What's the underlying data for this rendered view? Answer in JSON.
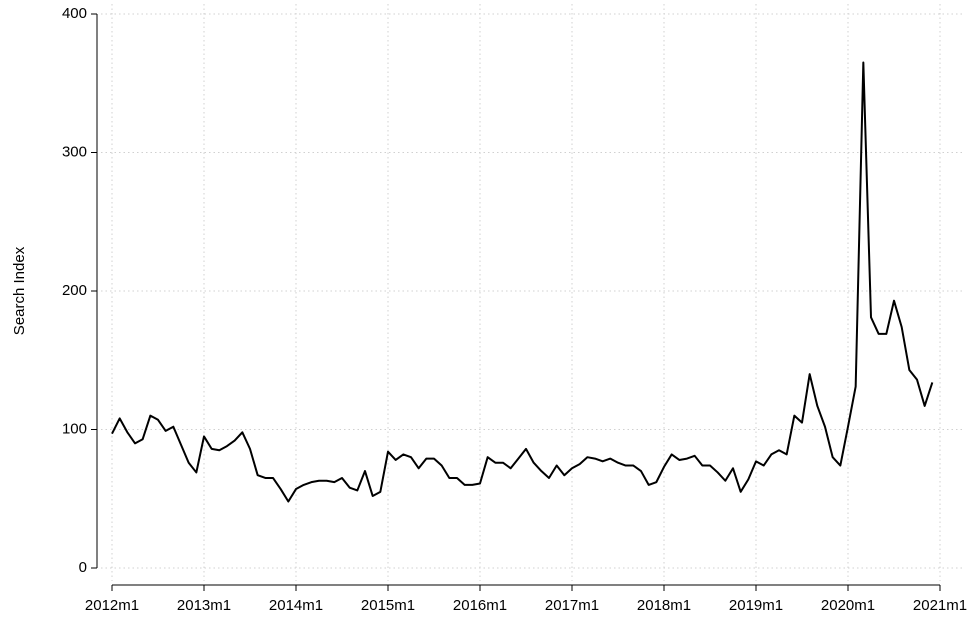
{
  "chart_data": {
    "type": "line",
    "y_label": "Search Index",
    "x": [
      "2012m1",
      "2012m2",
      "2012m3",
      "2012m4",
      "2012m5",
      "2012m6",
      "2012m7",
      "2012m8",
      "2012m9",
      "2012m10",
      "2012m11",
      "2012m12",
      "2013m1",
      "2013m2",
      "2013m3",
      "2013m4",
      "2013m5",
      "2013m6",
      "2013m7",
      "2013m8",
      "2013m9",
      "2013m10",
      "2013m11",
      "2013m12",
      "2014m1",
      "2014m2",
      "2014m3",
      "2014m4",
      "2014m5",
      "2014m6",
      "2014m7",
      "2014m8",
      "2014m9",
      "2014m10",
      "2014m11",
      "2014m12",
      "2015m1",
      "2015m2",
      "2015m3",
      "2015m4",
      "2015m5",
      "2015m6",
      "2015m7",
      "2015m8",
      "2015m9",
      "2015m10",
      "2015m11",
      "2015m12",
      "2016m1",
      "2016m2",
      "2016m3",
      "2016m4",
      "2016m5",
      "2016m6",
      "2016m7",
      "2016m8",
      "2016m9",
      "2016m10",
      "2016m11",
      "2016m12",
      "2017m1",
      "2017m2",
      "2017m3",
      "2017m4",
      "2017m5",
      "2017m6",
      "2017m7",
      "2017m8",
      "2017m9",
      "2017m10",
      "2017m11",
      "2017m12",
      "2018m1",
      "2018m2",
      "2018m3",
      "2018m4",
      "2018m5",
      "2018m6",
      "2018m7",
      "2018m8",
      "2018m9",
      "2018m10",
      "2018m11",
      "2018m12",
      "2019m1",
      "2019m2",
      "2019m3",
      "2019m4",
      "2019m5",
      "2019m6",
      "2019m7",
      "2019m8",
      "2019m9",
      "2019m10",
      "2019m11",
      "2019m12",
      "2020m1",
      "2020m2",
      "2020m3",
      "2020m4",
      "2020m5",
      "2020m6",
      "2020m7",
      "2020m8",
      "2020m9",
      "2020m10",
      "2020m11",
      "2020m12"
    ],
    "series": [
      {
        "color": "#000000",
        "values": [
          97,
          108,
          98,
          90,
          93,
          110,
          107,
          99,
          102,
          89,
          76,
          69,
          95,
          86,
          85,
          88,
          92,
          98,
          86,
          67,
          65,
          65,
          57,
          48,
          57,
          60,
          62,
          63,
          63,
          62,
          65,
          58,
          56,
          70,
          52,
          55,
          84,
          78,
          82,
          80,
          72,
          79,
          79,
          74,
          65,
          65,
          60,
          60,
          61,
          80,
          76,
          76,
          72,
          79,
          86,
          76,
          70,
          65,
          74,
          67,
          72,
          75,
          80,
          79,
          77,
          79,
          76,
          74,
          74,
          70,
          60,
          62,
          73,
          82,
          78,
          79,
          81,
          74,
          74,
          69,
          63,
          72,
          55,
          64,
          77,
          74,
          82,
          85,
          82,
          110,
          105,
          140,
          117,
          102,
          80,
          74,
          102,
          131,
          365,
          181,
          169,
          169,
          193,
          174,
          143,
          136,
          117,
          134
        ]
      }
    ],
    "xlim": [
      "2012m1",
      "2021m1"
    ],
    "xticks": [
      "2012m1",
      "2013m1",
      "2014m1",
      "2015m1",
      "2016m1",
      "2017m1",
      "2018m1",
      "2019m1",
      "2020m1",
      "2021m1"
    ],
    "ylim": [
      0,
      400
    ],
    "yticks": [
      0,
      100,
      200,
      300,
      400
    ],
    "grid": true
  }
}
